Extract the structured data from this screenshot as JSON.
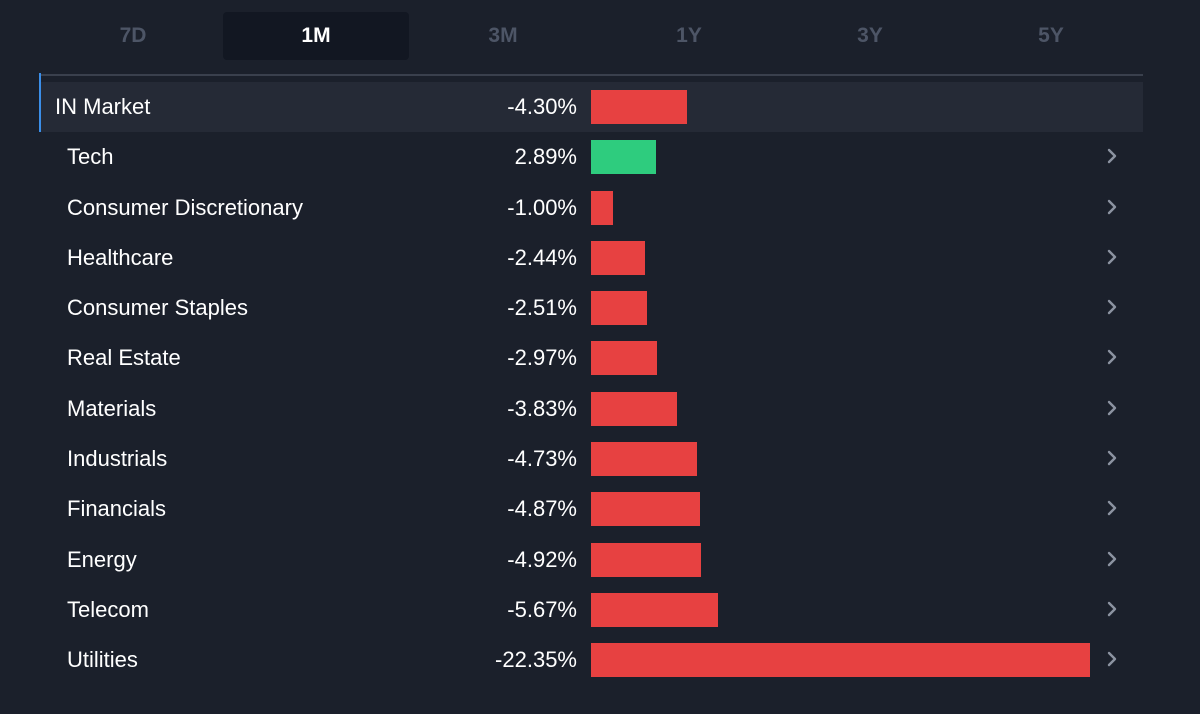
{
  "tabs": [
    {
      "label": "7D",
      "active": false
    },
    {
      "label": "1M",
      "active": true
    },
    {
      "label": "3M",
      "active": false
    },
    {
      "label": "1Y",
      "active": false
    },
    {
      "label": "3Y",
      "active": false
    },
    {
      "label": "5Y",
      "active": false
    }
  ],
  "market": {
    "label": "IN Market",
    "value_text": "-4.30%",
    "value": -4.3
  },
  "sectors": [
    {
      "label": "Tech",
      "value_text": "2.89%",
      "value": 2.89
    },
    {
      "label": "Consumer Discretionary",
      "value_text": "-1.00%",
      "value": -1.0
    },
    {
      "label": "Healthcare",
      "value_text": "-2.44%",
      "value": -2.44
    },
    {
      "label": "Consumer Staples",
      "value_text": "-2.51%",
      "value": -2.51
    },
    {
      "label": "Real Estate",
      "value_text": "-2.97%",
      "value": -2.97
    },
    {
      "label": "Materials",
      "value_text": "-3.83%",
      "value": -3.83
    },
    {
      "label": "Industrials",
      "value_text": "-4.73%",
      "value": -4.73
    },
    {
      "label": "Financials",
      "value_text": "-4.87%",
      "value": -4.87
    },
    {
      "label": "Energy",
      "value_text": "-4.92%",
      "value": -4.92
    },
    {
      "label": "Telecom",
      "value_text": "-5.67%",
      "value": -5.67
    },
    {
      "label": "Utilities",
      "value_text": "-22.35%",
      "value": -22.35
    }
  ],
  "colors": {
    "positive": "#2ecc7e",
    "negative": "#e74141",
    "accent": "#3b8ee8"
  },
  "icons": {
    "row_arrow": "chevron-right-icon"
  }
}
